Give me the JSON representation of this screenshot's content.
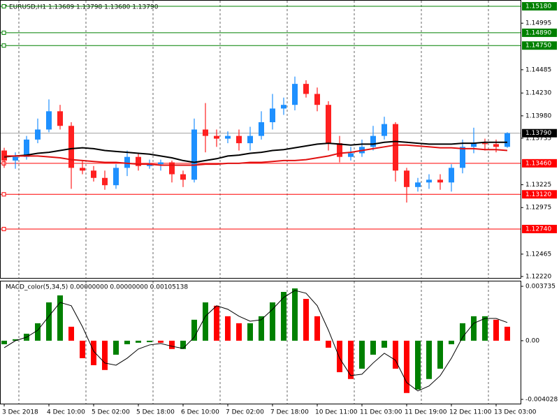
{
  "chart_data": [
    {
      "type": "candlestick",
      "title": "EURUSD,H1 1.13689 1.13798 1.13680 1.13790",
      "categories": [
        "3 Dec 2018",
        null,
        null,
        null,
        "4 Dec 10:00",
        null,
        null,
        null,
        "5 Dec 02:00",
        null,
        null,
        null,
        "5 Dec 18:00",
        null,
        null,
        null,
        "6 Dec 10:00",
        null,
        null,
        null,
        "7 Dec 02:00",
        null,
        null,
        null,
        "7 Dec 18:00",
        null,
        null,
        null,
        "10 Dec 11:00",
        null,
        null,
        null,
        "11 Dec 03:00",
        null,
        null,
        null,
        "11 Dec 19:00",
        null,
        null,
        null,
        "12 Dec 11:00",
        null,
        null,
        null,
        "13 Dec 03:00",
        null
      ],
      "open": [
        1.136,
        1.1349,
        1.1353,
        1.1372,
        1.1383,
        1.1403,
        1.1387,
        1.1341,
        1.1338,
        1.133,
        1.1322,
        1.1341,
        1.1353,
        1.1343,
        1.1345,
        1.1347,
        1.1334,
        1.1328,
        1.1383,
        1.1376,
        1.1373,
        1.1376,
        1.1368,
        1.1376,
        1.1391,
        1.1406,
        1.141,
        1.1433,
        1.1422,
        1.141,
        1.1368,
        1.1353,
        1.1357,
        1.1364,
        1.1376,
        1.1389,
        1.1338,
        1.132,
        1.1325,
        1.1328,
        1.1325,
        1.1341,
        1.1364,
        1.1368,
        1.1367,
        1.1364
      ],
      "high": [
        1.1363,
        1.1358,
        1.1376,
        1.1395,
        1.1416,
        1.141,
        1.1391,
        1.1349,
        1.1343,
        1.1338,
        1.1345,
        1.136,
        1.1357,
        1.135,
        1.135,
        1.1349,
        1.1338,
        1.1395,
        1.1412,
        1.1383,
        1.1381,
        1.1383,
        1.1386,
        1.1403,
        1.1422,
        1.1418,
        1.1441,
        1.1437,
        1.1429,
        1.1414,
        1.1376,
        1.1364,
        1.1372,
        1.1387,
        1.1397,
        1.1391,
        1.1341,
        1.133,
        1.1334,
        1.1334,
        1.1345,
        1.1372,
        1.1385,
        1.1373,
        1.1372,
        1.138
      ],
      "low": [
        1.1341,
        1.134,
        1.135,
        1.1368,
        1.138,
        1.1383,
        1.1318,
        1.1334,
        1.1326,
        1.1317,
        1.1318,
        1.1332,
        1.1338,
        1.134,
        1.1338,
        1.1325,
        1.132,
        1.1325,
        1.1358,
        1.1364,
        1.1368,
        1.136,
        1.136,
        1.1372,
        1.1383,
        1.1399,
        1.1404,
        1.1418,
        1.1403,
        1.136,
        1.1347,
        1.1349,
        1.1353,
        1.136,
        1.1372,
        1.1326,
        1.1303,
        1.1315,
        1.1318,
        1.1317,
        1.1315,
        1.1335,
        1.1357,
        1.136,
        1.1358,
        1.1363
      ],
      "close": [
        1.1349,
        1.1353,
        1.1372,
        1.1383,
        1.1403,
        1.1387,
        1.1341,
        1.1338,
        1.133,
        1.1322,
        1.1341,
        1.1353,
        1.1343,
        1.1345,
        1.1347,
        1.1334,
        1.1328,
        1.1383,
        1.1376,
        1.1373,
        1.1376,
        1.1368,
        1.1376,
        1.1391,
        1.1406,
        1.141,
        1.1433,
        1.1422,
        1.141,
        1.1368,
        1.1353,
        1.1357,
        1.1364,
        1.1376,
        1.1389,
        1.1338,
        1.132,
        1.1325,
        1.1328,
        1.1325,
        1.1341,
        1.1364,
        1.1368,
        1.1367,
        1.1364,
        1.1379
      ],
      "up_color": "#1e90ff",
      "down_color": "#ff2020",
      "lines": [
        {
          "color": "#000000",
          "values": [
            1.1353,
            1.1354,
            1.1355,
            1.1357,
            1.1358,
            1.136,
            1.1362,
            1.1363,
            1.1362,
            1.136,
            1.1359,
            1.1358,
            1.1357,
            1.1356,
            1.1354,
            1.1352,
            1.1349,
            1.1347,
            1.1349,
            1.1351,
            1.1354,
            1.1355,
            1.1357,
            1.1358,
            1.136,
            1.1361,
            1.1363,
            1.1365,
            1.1367,
            1.1368,
            1.1367,
            1.1366,
            1.1367,
            1.1367,
            1.1369,
            1.137,
            1.1369,
            1.1368,
            1.1367,
            1.1367,
            1.1367,
            1.1368,
            1.1368,
            1.1369,
            1.1369,
            1.1369
          ]
        },
        {
          "color": "#e01010",
          "values": [
            1.1354,
            1.1354,
            1.1354,
            1.1354,
            1.1353,
            1.1352,
            1.135,
            1.1349,
            1.1348,
            1.1347,
            1.1347,
            1.1346,
            1.1345,
            1.1345,
            1.1344,
            1.1344,
            1.1344,
            1.1344,
            1.1345,
            1.1345,
            1.1346,
            1.1346,
            1.1347,
            1.1347,
            1.1348,
            1.1349,
            1.1349,
            1.135,
            1.1352,
            1.1354,
            1.1357,
            1.1358,
            1.136,
            1.1362,
            1.1364,
            1.1366,
            1.1366,
            1.1365,
            1.1364,
            1.1363,
            1.1363,
            1.1362,
            1.1362,
            1.1361,
            1.1361,
            1.136
          ]
        }
      ],
      "levels": [
        {
          "value": 1.1518,
          "label": "1.15180",
          "color": "#008000"
        },
        {
          "value": 1.1489,
          "label": "1.14890",
          "color": "#008000"
        },
        {
          "value": 1.1475,
          "label": "1.14750",
          "color": "#008000"
        },
        {
          "value": 1.1346,
          "label": "1.13460",
          "color": "#ff0000"
        },
        {
          "value": 1.1312,
          "label": "1.13120",
          "color": "#ff0000"
        },
        {
          "value": 1.1274,
          "label": "1.12740",
          "color": "#ff0000"
        }
      ],
      "last_price": {
        "value": 1.1379,
        "label": "1.13790"
      },
      "ylim": [
        1.12204,
        1.15249
      ],
      "yticks": [
        1.14995,
        1.14485,
        {
          "value": 1.1423,
          "label": "1.14230"
        },
        {
          "value": 1.1398,
          "label": "1.13980"
        },
        1.13735,
        1.13225,
        1.12975,
        1.12465,
        {
          "value": 1.1222,
          "label": "1.12220"
        }
      ],
      "xgrid": true
    },
    {
      "type": "macd",
      "title": "MACD_color(5,34,5) 0.00000000 0.00000000 0.00105138",
      "values": [
        -0.00024,
        0.0001,
        0.00048,
        0.0012,
        0.00263,
        0.00311,
        0.00096,
        -0.0012,
        -0.00168,
        -0.00201,
        -0.00096,
        -0.00024,
        -0.00014,
        -0.0001,
        -0.00014,
        -0.00057,
        -0.00057,
        0.00144,
        0.00263,
        0.0024,
        0.00168,
        0.0012,
        0.0012,
        0.00168,
        0.00263,
        0.00335,
        0.00359,
        0.00287,
        0.00168,
        -0.00048,
        -0.00216,
        -0.00263,
        -0.00192,
        -0.00096,
        -0.00048,
        -0.00192,
        -0.00359,
        -0.00335,
        -0.00263,
        -0.00192,
        -0.00024,
        0.0012,
        0.00168,
        0.00168,
        0.00144,
        0.00096
      ],
      "signal": {
        "color": "#000000",
        "values": [
          -0.00048,
          0,
          0.00024,
          0.00072,
          0.00168,
          0.00263,
          0.0024,
          0.00096,
          -0.00072,
          -0.00153,
          -0.00168,
          -0.0012,
          -0.00057,
          -0.00029,
          -0.00019,
          -0.00038,
          -0.00053,
          0.00024,
          0.00168,
          0.0024,
          0.00216,
          0.00168,
          0.00134,
          0.00144,
          0.00216,
          0.00297,
          0.00345,
          0.00326,
          0.0024,
          0.00072,
          -0.0012,
          -0.0024,
          -0.0023,
          -0.00153,
          -0.00086,
          -0.00134,
          -0.00287,
          -0.00345,
          -0.00311,
          -0.0024,
          -0.0012,
          0.00024,
          0.0012,
          0.00153,
          0.00153,
          0.00125
        ]
      },
      "up_color": "#008000",
      "down_color": "#ff0000",
      "ylim": [
        -0.00432,
        0.00407
      ],
      "yticks": [
        0.003735,
        {
          "value": 0,
          "label": "0.00"
        },
        -0.004028
      ]
    }
  ]
}
